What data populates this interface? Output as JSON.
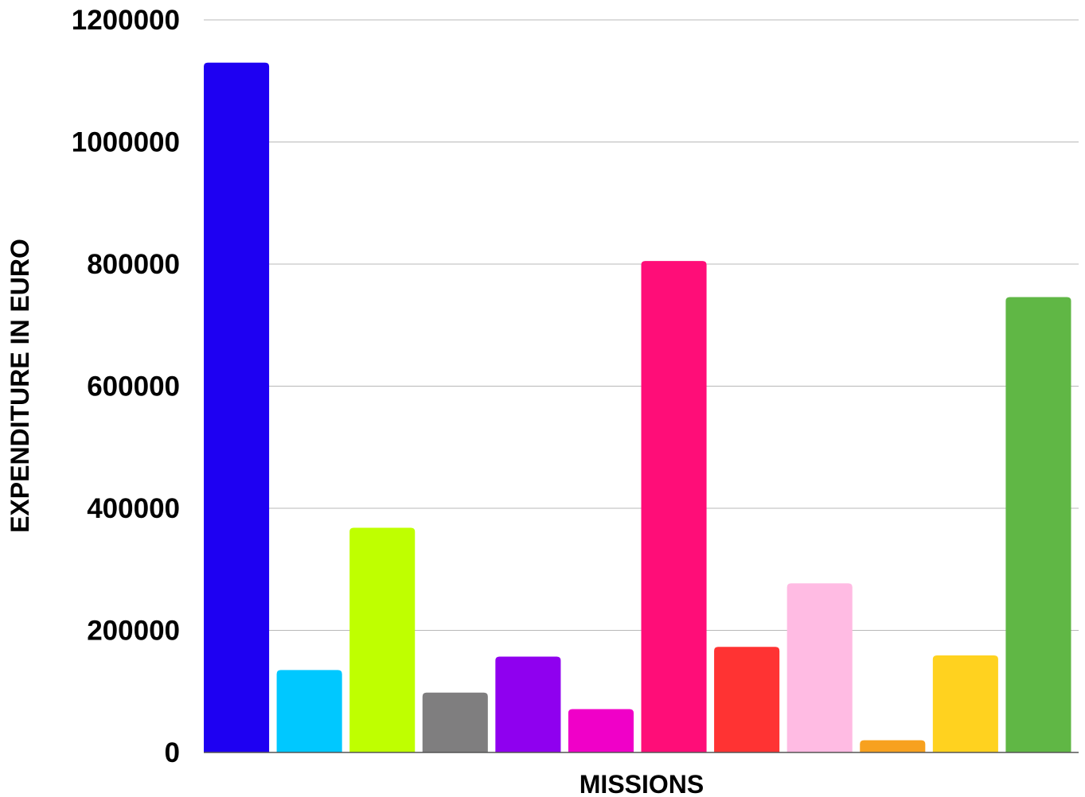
{
  "chart_data": {
    "type": "bar",
    "title": "",
    "xlabel": "MISSIONS",
    "ylabel": "EXPENDITURE IN EURO",
    "ylim": [
      0,
      1200000
    ],
    "yticks": [
      0,
      200000,
      400000,
      600000,
      800000,
      1000000,
      1200000
    ],
    "ytick_labels": [
      "0",
      "200000",
      "400000",
      "600000",
      "800000",
      "1000000",
      "1200000"
    ],
    "grid": true,
    "legend": "none",
    "values": [
      1130000,
      135000,
      368000,
      98000,
      157000,
      71000,
      805000,
      173000,
      277000,
      20000,
      159000,
      746000
    ],
    "colors": [
      "#1e00f2",
      "#00c8ff",
      "#bfff00",
      "#7f7e7f",
      "#8f00ef",
      "#f000c8",
      "#ff0d78",
      "#ff3333",
      "#ffbbe3",
      "#f7a11f",
      "#ffd21f",
      "#60b745"
    ]
  }
}
